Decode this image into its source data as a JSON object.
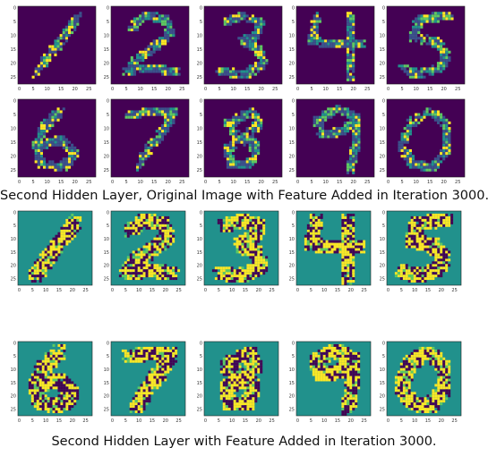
{
  "captions": {
    "top": "Second Hidden Layer, Original Image with Feature Added in Iteration 3000.",
    "bottom": "Second Hidden Layer with Feature Added in Iteration 3000."
  },
  "colors": {
    "viridis_low": "#440154",
    "viridis_blue": "#3b528b",
    "viridis_teal": "#21918c",
    "viridis_green": "#5ec962",
    "viridis_yellow": "#fde725",
    "frame": "#222222"
  },
  "chart_data": [
    {
      "type": "heatmap",
      "title": "Second Hidden Layer, Original Image with Feature Added in Iteration 3000.",
      "grid_size": [
        28,
        28
      ],
      "background_value": "dark purple (low activation)",
      "x_ticks": [
        0,
        5,
        10,
        15,
        20,
        25
      ],
      "y_ticks": [
        0,
        5,
        10,
        15,
        20,
        25
      ],
      "panels": [
        {
          "name": "row1-col1",
          "shape": "digit-like diagonal stroke"
        },
        {
          "name": "row1-col2",
          "shape": "digit-like stroke (2)"
        },
        {
          "name": "row1-col3",
          "shape": "digit-like stroke (3)"
        },
        {
          "name": "row1-col4",
          "shape": "digit-like stroke (4)"
        },
        {
          "name": "row1-col5",
          "shape": "digit-like stroke (5)"
        },
        {
          "name": "row2-col1",
          "shape": "digit-like stroke (6)"
        },
        {
          "name": "row2-col2",
          "shape": "digit-like stroke (7)"
        },
        {
          "name": "row2-col3",
          "shape": "digit-like stroke (8)"
        },
        {
          "name": "row2-col4",
          "shape": "digit-like stroke (9)"
        },
        {
          "name": "row2-col5",
          "shape": "digit-like stroke (0)"
        }
      ]
    },
    {
      "type": "heatmap",
      "title": "Second Hidden Layer with Feature Added in Iteration 3000.",
      "grid_size": [
        28,
        28
      ],
      "background_value": "teal (zero feature)",
      "x_ticks": [
        0,
        5,
        10,
        15,
        20,
        25
      ],
      "y_ticks": [
        0,
        5,
        10,
        15,
        20,
        25
      ],
      "panels": [
        {
          "name": "row1-col1",
          "shape": "feature map"
        },
        {
          "name": "row1-col2",
          "shape": "feature map"
        },
        {
          "name": "row1-col3",
          "shape": "feature map"
        },
        {
          "name": "row1-col4",
          "shape": "feature map"
        },
        {
          "name": "row1-col5",
          "shape": "feature map"
        },
        {
          "name": "row2-col1",
          "shape": "feature map"
        },
        {
          "name": "row2-col2",
          "shape": "feature map"
        },
        {
          "name": "row2-col3",
          "shape": "feature map"
        },
        {
          "name": "row2-col4",
          "shape": "feature map"
        },
        {
          "name": "row2-col5",
          "shape": "feature map"
        }
      ]
    }
  ]
}
